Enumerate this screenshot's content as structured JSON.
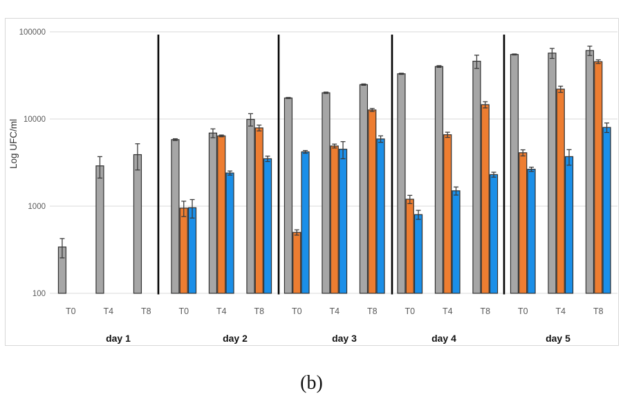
{
  "figure": {
    "caption": "(b)"
  },
  "chart_data": {
    "type": "bar",
    "scale": "log",
    "title": "",
    "xlabel": "",
    "ylabel": "Log UFC/ml",
    "ylim": [
      100,
      100000
    ],
    "yticks": [
      "100",
      "1000",
      "10000",
      "100000"
    ],
    "grid": "horizontal",
    "legend": "none",
    "day_labels": [
      "day 1",
      "day 2",
      "day 3",
      "day 4",
      "day 5"
    ],
    "time_labels": [
      "T0",
      "T4",
      "T8"
    ],
    "categories": [
      "day1-T0",
      "day1-T4",
      "day1-T8",
      "day2-T0",
      "day2-T4",
      "day2-T8",
      "day3-T0",
      "day3-T4",
      "day3-T8",
      "day4-T0",
      "day4-T4",
      "day4-T8",
      "day5-T0",
      "day5-T4",
      "day5-T8"
    ],
    "colors": {
      "gray": "#a6a6a6",
      "orange": "#ed7d31",
      "blue": "#1b8fe8",
      "bar_border": "#2f2f2f",
      "grid": "#d9d9d9",
      "separator": "#000000",
      "tick_text": "#595959",
      "day_text": "#111111"
    },
    "series": [
      {
        "name": "gray",
        "values": [
          340,
          2900,
          3900,
          5800,
          6900,
          9900,
          17400,
          20000,
          24800,
          33000,
          40000,
          46000,
          55000,
          57000,
          61000
        ],
        "errors": [
          85,
          800,
          1300,
          130,
          800,
          1600,
          250,
          350,
          450,
          500,
          900,
          8000,
          700,
          7500,
          7500
        ]
      },
      {
        "name": "orange",
        "values": [
          null,
          null,
          null,
          950,
          6400,
          7900,
          500,
          4900,
          12700,
          1200,
          6600,
          14600,
          4100,
          22000,
          45500
        ],
        "errors": [
          null,
          null,
          null,
          190,
          150,
          600,
          35,
          250,
          500,
          130,
          450,
          1200,
          330,
          1800,
          2200
        ]
      },
      {
        "name": "blue",
        "values": [
          null,
          null,
          null,
          960,
          2400,
          3500,
          4200,
          4500,
          5900,
          800,
          1500,
          2300,
          2650,
          3700,
          8000
        ],
        "errors": [
          null,
          null,
          null,
          230,
          130,
          250,
          150,
          1000,
          500,
          95,
          160,
          150,
          150,
          750,
          1000
        ]
      }
    ]
  }
}
